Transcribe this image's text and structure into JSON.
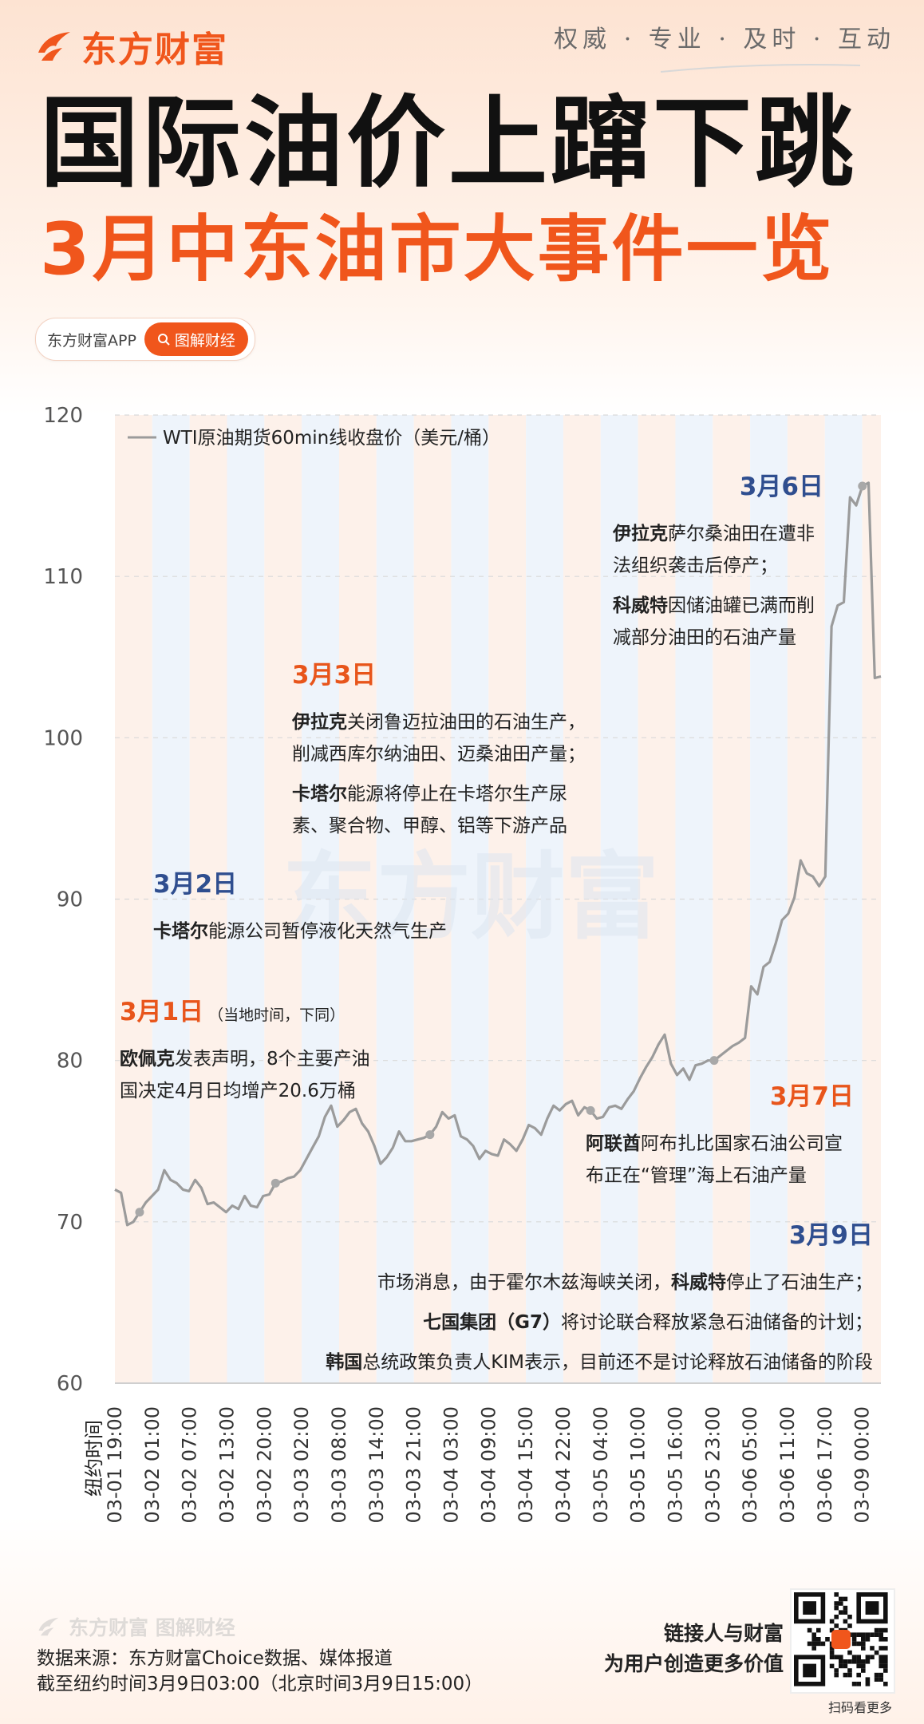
{
  "header": {
    "brand": "东方财富",
    "slogan": "权威 · 专业 · 及时 · 互动",
    "title_main": "国际油价上蹿下跳",
    "title_sub": "3月中东油市大事件一览",
    "app_name": "东方财富APP",
    "app_button": "图解财经"
  },
  "watermark": "东方财富",
  "chart_data": {
    "type": "line",
    "title": "",
    "xlabel": "纽约时间",
    "ylabel": "",
    "ylim": [
      60,
      120
    ],
    "yticks": [
      60,
      70,
      80,
      90,
      100,
      110,
      120
    ],
    "grid": "horizontal dashed",
    "legend_position": "top-left",
    "x_tick_labels": [
      "03-01 19:00",
      "03-02 01:00",
      "03-02 07:00",
      "03-02 13:00",
      "03-02 20:00",
      "03-03 02:00",
      "03-03 08:00",
      "03-03 14:00",
      "03-03 21:00",
      "03-04 03:00",
      "03-04 09:00",
      "03-04 15:00",
      "03-04 22:00",
      "03-05 04:00",
      "03-05 10:00",
      "03-05 16:00",
      "03-05 23:00",
      "03-06 05:00",
      "03-06 11:00",
      "03-06 17:00",
      "03-09 00:00"
    ],
    "series": [
      {
        "name": "WTI原油期货60min线收盘价（美元/桶）",
        "color": "#9b9b9b",
        "values": [
          72.0,
          71.8,
          69.8,
          70.0,
          70.6,
          71.2,
          71.6,
          72.0,
          73.2,
          72.6,
          72.4,
          72.0,
          71.9,
          72.6,
          72.1,
          71.1,
          71.2,
          70.9,
          70.6,
          71.0,
          70.8,
          71.6,
          71.0,
          70.9,
          71.6,
          71.7,
          72.4,
          72.5,
          72.7,
          72.8,
          73.2,
          73.9,
          74.6,
          75.3,
          76.5,
          77.2,
          75.9,
          76.3,
          76.8,
          77.0,
          76.1,
          75.6,
          74.7,
          73.6,
          74.0,
          74.6,
          75.6,
          75.0,
          75.0,
          75.1,
          75.2,
          75.4,
          75.9,
          76.8,
          76.4,
          76.6,
          75.3,
          75.1,
          74.7,
          73.9,
          74.4,
          74.2,
          74.1,
          75.1,
          74.8,
          74.4,
          75.1,
          76.0,
          75.8,
          75.4,
          76.4,
          77.2,
          76.9,
          77.3,
          77.5,
          76.6,
          77.1,
          76.9,
          76.4,
          76.5,
          77.1,
          77.2,
          77.0,
          77.6,
          78.1,
          78.9,
          79.6,
          80.2,
          81.0,
          81.6,
          79.8,
          79.1,
          79.5,
          78.8,
          79.7,
          79.8,
          80.0,
          80.0,
          80.3,
          80.6,
          80.9,
          81.1,
          81.4,
          84.6,
          84.1,
          85.8,
          86.1,
          87.3,
          88.7,
          89.1,
          90.1,
          92.4,
          91.6,
          91.4,
          90.8,
          91.4,
          106.9,
          108.2,
          108.4,
          114.9,
          114.4,
          115.6,
          115.8,
          103.7,
          103.8
        ],
        "markers_at": [
          4,
          26,
          51,
          77,
          97
        ]
      }
    ]
  },
  "events": [
    {
      "date": "3月1日",
      "note": "（当地时间，下同）",
      "date_color": "#e8551b",
      "lines": [
        [
          {
            "b": "欧佩克"
          },
          {
            "t": "发表声明，8个主要产油"
          }
        ],
        [
          {
            "t": "国决定4月日均增产20.6万桶"
          }
        ]
      ]
    },
    {
      "date": "3月2日",
      "note": "",
      "date_color": "#2f4e8f",
      "lines": [
        [
          {
            "b": "卡塔尔"
          },
          {
            "t": "能源公司暂停液化天然气生产"
          }
        ]
      ]
    },
    {
      "date": "3月3日",
      "note": "",
      "date_color": "#e8551b",
      "lines": [
        [
          {
            "b": "伊拉克"
          },
          {
            "t": "关闭鲁迈拉油田的石油生产，"
          }
        ],
        [
          {
            "t": "削减西库尔纳油田、迈桑油田产量；"
          }
        ],
        [
          {
            "b": "卡塔尔"
          },
          {
            "t": "能源将停止在卡塔尔生产尿"
          }
        ],
        [
          {
            "t": "素、聚合物、甲醇、铝等下游产品"
          }
        ]
      ]
    },
    {
      "date": "3月6日",
      "note": "",
      "date_color": "#2f4e8f",
      "lines": [
        [
          {
            "b": "伊拉克"
          },
          {
            "t": "萨尔桑油田在遭非"
          }
        ],
        [
          {
            "t": "法组织袭击后停产；"
          }
        ],
        [
          {
            "b": "科威特"
          },
          {
            "t": "因储油罐已满而削"
          }
        ],
        [
          {
            "t": "减部分油田的石油产量"
          }
        ]
      ]
    },
    {
      "date": "3月7日",
      "note": "",
      "date_color": "#e8551b",
      "lines": [
        [
          {
            "b": "阿联酋"
          },
          {
            "t": "阿布扎比国家石油公司宣"
          }
        ],
        [
          {
            "t": "布正在“管理”海上石油产量"
          }
        ]
      ]
    },
    {
      "date": "3月9日",
      "note": "",
      "date_color": "#2f4e8f",
      "lines": [
        [
          {
            "t": "市场消息，由于霍尔木兹海峡关闭，"
          },
          {
            "b": "科威特"
          },
          {
            "t": "停止了石油生产；"
          }
        ],
        [
          {
            "b": "七国集团（G7）"
          },
          {
            "t": "将讨论联合释放紧急石油储备的计划；"
          }
        ],
        [
          {
            "b": "韩国"
          },
          {
            "t": "总统政策负责人KIM表示，目前还不是讨论释放石油储备的阶段"
          }
        ]
      ]
    }
  ],
  "footer": {
    "logo_text": "东方财富 图解财经",
    "source": "数据来源：东方财富Choice数据、媒体报道",
    "cutoff": "截至纽约时间3月9日03:00（北京时间3月9日15:00）",
    "slogan_line1": "链接人与财富",
    "slogan_line2": "为用户创造更多价值",
    "qr_caption": "扫码看更多"
  },
  "colors": {
    "accent": "#f0561c",
    "blue": "#2f4e8f",
    "band_orange": "#fdf1ea",
    "band_blue": "#eef4fb"
  }
}
